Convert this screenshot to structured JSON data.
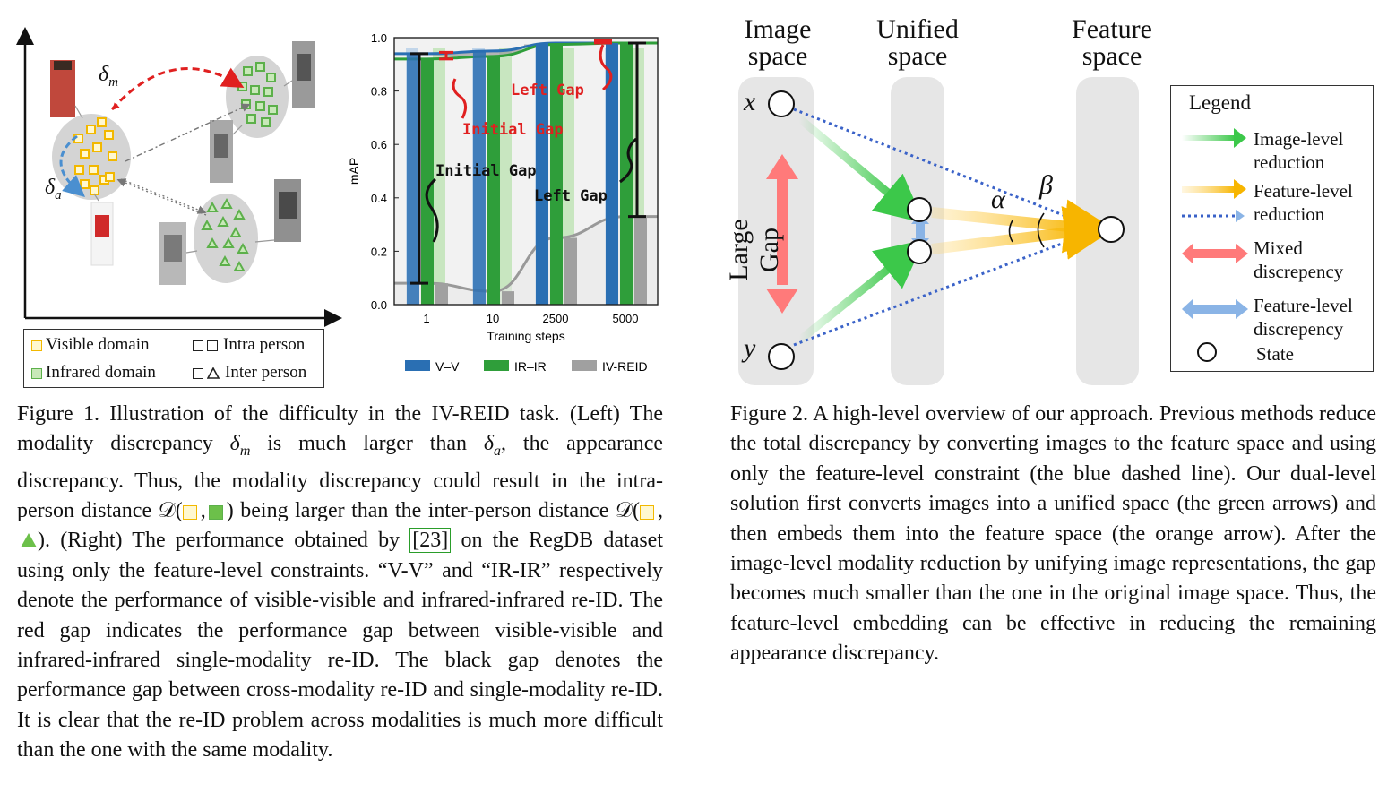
{
  "figure1": {
    "left": {
      "delta_m": "δm",
      "delta_a": "δa",
      "legend": {
        "visible": "Visible domain",
        "infrared": "Infrared domain",
        "intra": "Intra person",
        "inter": "Inter person"
      }
    },
    "chart_data": {
      "type": "bar",
      "xlabel": "Training steps",
      "ylabel": "mAP",
      "ylim": [
        0,
        1.0
      ],
      "y_ticks": [
        "0.0",
        "0.2",
        "0.4",
        "0.6",
        "0.8",
        "1.0"
      ],
      "categories": [
        "1",
        "10",
        "2500",
        "5000"
      ],
      "series": [
        {
          "name": "V–V",
          "color": "#2a6fb3",
          "values": [
            0.94,
            0.95,
            0.98,
            0.98
          ]
        },
        {
          "name": "IR–IR",
          "color": "#2f9e3a",
          "values": [
            0.92,
            0.93,
            0.975,
            0.98
          ]
        },
        {
          "name": "IV-REID",
          "color": "#a0a0a0",
          "values": [
            0.08,
            0.05,
            0.25,
            0.33
          ]
        }
      ],
      "annotations": {
        "red_initial": "Initial Gap",
        "red_left": "Left Gap",
        "black_initial": "Initial Gap",
        "black_left": "Left Gap"
      }
    },
    "caption": {
      "p1": "Figure 1. Illustration of the difficulty in the IV-REID task. (Left) The modality discrepancy ",
      "dm": "δm",
      "p2": " is much larger than ",
      "da": "δa",
      "p3": ", the appearance discrepancy. Thus, the modality discrepancy could result in the intra-person distance ",
      "D1": "𝒟(",
      "sep1": ",",
      "close1": ")",
      "p4": " being larger than the inter-person distance ",
      "D2": "𝒟(",
      "sep2": ",",
      "close2": ")",
      "p5": ". (Right) The performance obtained by ",
      "cite": "[23]",
      "p6": " on the RegDB dataset using only the feature-level constraints. “V-V” and “IR-IR” respectively denote the performance of visible-visible and infrared-infrared re-ID. The red gap indicates the performance gap between visible-visible and infrared-infrared single-modality re-ID. The black gap denotes the performance gap between cross-modality re-ID and single-modality re-ID. It is clear that the re-ID problem across modalities is much more difficult than the one with the same modality."
    }
  },
  "figure2": {
    "image_space": [
      "Image",
      "space"
    ],
    "unified_space": [
      "Unified",
      "space"
    ],
    "feature_space": [
      "Feature",
      "space"
    ],
    "x_label": "x",
    "y_label": "y",
    "large_gap": "Large Gap",
    "alpha": "α",
    "beta": "β",
    "legend": {
      "title": "Legend",
      "image_level": [
        "Image-level",
        "reduction"
      ],
      "feature_level": [
        "Feature-level",
        "reduction"
      ],
      "mixed": [
        "Mixed",
        "discrepency"
      ],
      "feature_disc": [
        "Feature-level",
        "discrepency"
      ],
      "state": "State"
    },
    "caption": "Figure 2. A high-level overview of our approach. Previous methods reduce the total discrepancy by converting images to the feature space and using only the feature-level constraint (the blue dashed line). Our dual-level solution first converts images into a unified space (the green arrows) and then embeds them into the feature space (the orange arrow). After the image-level modality reduction by unifying image representations, the gap becomes much smaller than the one in the original image space. Thus, the feature-level embedding can be effective in reducing the remaining appearance discrepancy."
  }
}
